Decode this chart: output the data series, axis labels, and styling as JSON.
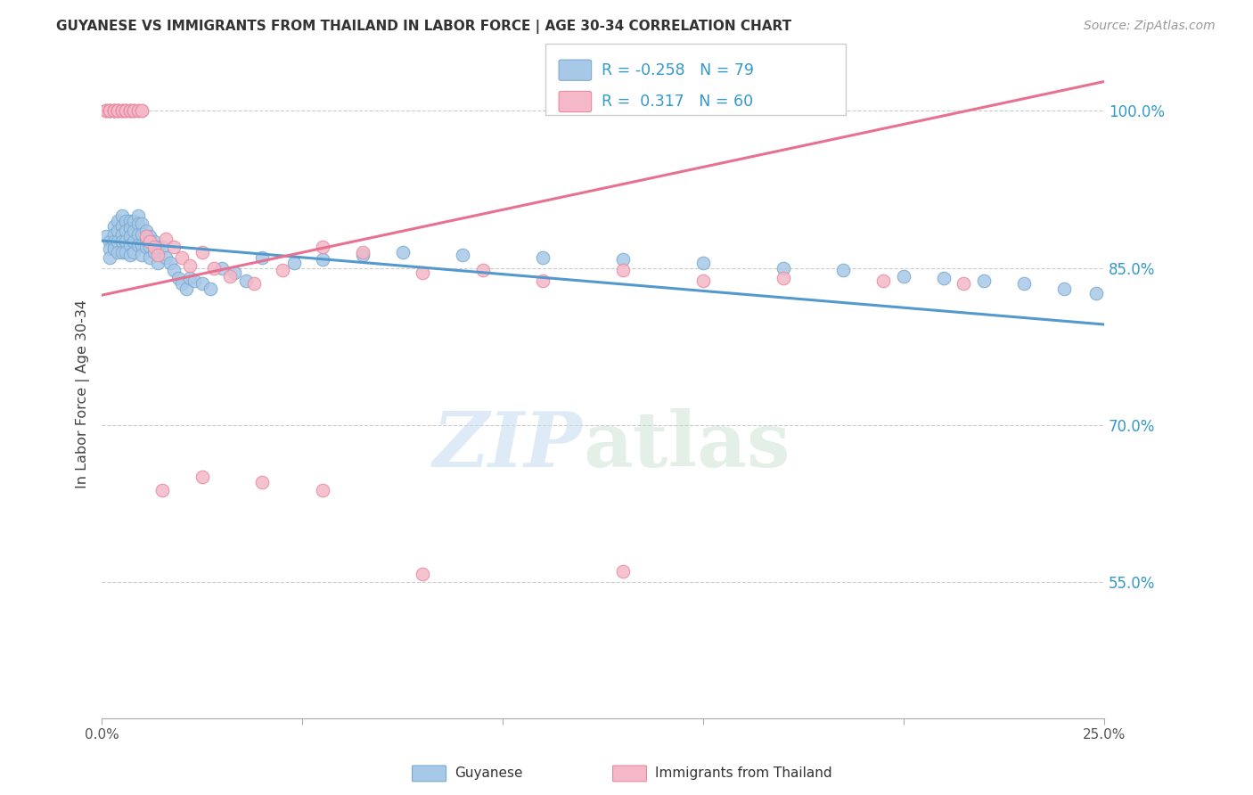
{
  "title": "GUYANESE VS IMMIGRANTS FROM THAILAND IN LABOR FORCE | AGE 30-34 CORRELATION CHART",
  "source": "Source: ZipAtlas.com",
  "ylabel": "In Labor Force | Age 30-34",
  "yticks": [
    0.55,
    0.7,
    0.85,
    1.0
  ],
  "ytick_labels": [
    "55.0%",
    "70.0%",
    "85.0%",
    "100.0%"
  ],
  "xlim": [
    0.0,
    0.25
  ],
  "ylim": [
    0.42,
    1.04
  ],
  "blue_R": "-0.258",
  "blue_N": "79",
  "pink_R": "0.317",
  "pink_N": "60",
  "blue_color": "#a8c8e8",
  "pink_color": "#f4b8c8",
  "blue_edge_color": "#7aabcf",
  "pink_edge_color": "#e88aa0",
  "blue_line_color": "#5599cc",
  "pink_line_color": "#e87090",
  "legend_label_blue": "Guyanese",
  "legend_label_pink": "Immigrants from Thailand",
  "blue_trendline_x": [
    0.0,
    0.25
  ],
  "blue_trendline_y": [
    0.876,
    0.796
  ],
  "pink_trendline_x": [
    0.0,
    0.25
  ],
  "pink_trendline_y": [
    0.824,
    1.028
  ],
  "blue_scatter_x": [
    0.001,
    0.002,
    0.002,
    0.002,
    0.003,
    0.003,
    0.003,
    0.003,
    0.004,
    0.004,
    0.004,
    0.004,
    0.005,
    0.005,
    0.005,
    0.005,
    0.005,
    0.006,
    0.006,
    0.006,
    0.006,
    0.007,
    0.007,
    0.007,
    0.007,
    0.007,
    0.008,
    0.008,
    0.008,
    0.008,
    0.009,
    0.009,
    0.009,
    0.009,
    0.01,
    0.01,
    0.01,
    0.01,
    0.011,
    0.011,
    0.011,
    0.012,
    0.012,
    0.012,
    0.013,
    0.013,
    0.014,
    0.014,
    0.015,
    0.016,
    0.017,
    0.018,
    0.019,
    0.02,
    0.021,
    0.022,
    0.023,
    0.025,
    0.027,
    0.03,
    0.033,
    0.036,
    0.04,
    0.048,
    0.055,
    0.065,
    0.075,
    0.09,
    0.11,
    0.13,
    0.15,
    0.17,
    0.185,
    0.2,
    0.21,
    0.22,
    0.23,
    0.24,
    0.248
  ],
  "blue_scatter_y": [
    0.88,
    0.875,
    0.868,
    0.86,
    0.89,
    0.882,
    0.875,
    0.868,
    0.895,
    0.885,
    0.875,
    0.865,
    0.9,
    0.89,
    0.882,
    0.875,
    0.865,
    0.895,
    0.885,
    0.875,
    0.865,
    0.895,
    0.888,
    0.88,
    0.872,
    0.862,
    0.895,
    0.885,
    0.875,
    0.865,
    0.9,
    0.892,
    0.882,
    0.872,
    0.892,
    0.882,
    0.872,
    0.862,
    0.885,
    0.878,
    0.87,
    0.88,
    0.87,
    0.86,
    0.875,
    0.865,
    0.87,
    0.855,
    0.87,
    0.86,
    0.855,
    0.848,
    0.84,
    0.835,
    0.83,
    0.84,
    0.838,
    0.835,
    0.83,
    0.85,
    0.845,
    0.838,
    0.86,
    0.855,
    0.858,
    0.862,
    0.865,
    0.862,
    0.86,
    0.858,
    0.855,
    0.85,
    0.848,
    0.842,
    0.84,
    0.838,
    0.835,
    0.83,
    0.826
  ],
  "pink_scatter_x": [
    0.001,
    0.001,
    0.001,
    0.002,
    0.002,
    0.002,
    0.002,
    0.003,
    0.003,
    0.003,
    0.003,
    0.004,
    0.004,
    0.004,
    0.004,
    0.005,
    0.005,
    0.005,
    0.006,
    0.006,
    0.006,
    0.007,
    0.007,
    0.007,
    0.008,
    0.008,
    0.008,
    0.009,
    0.009,
    0.01,
    0.01,
    0.011,
    0.012,
    0.013,
    0.014,
    0.016,
    0.018,
    0.02,
    0.022,
    0.025,
    0.028,
    0.032,
    0.038,
    0.045,
    0.055,
    0.065,
    0.08,
    0.095,
    0.11,
    0.13,
    0.15,
    0.17,
    0.195,
    0.215,
    0.015,
    0.025,
    0.04,
    0.055,
    0.08,
    0.13
  ],
  "pink_scatter_y": [
    1.0,
    1.0,
    1.0,
    1.0,
    1.0,
    1.0,
    1.0,
    1.0,
    1.0,
    1.0,
    1.0,
    1.0,
    1.0,
    1.0,
    1.0,
    1.0,
    1.0,
    1.0,
    1.0,
    1.0,
    1.0,
    1.0,
    1.0,
    1.0,
    1.0,
    1.0,
    1.0,
    1.0,
    1.0,
    1.0,
    1.0,
    0.88,
    0.875,
    0.87,
    0.862,
    0.878,
    0.87,
    0.86,
    0.852,
    0.865,
    0.85,
    0.842,
    0.835,
    0.848,
    0.87,
    0.865,
    0.845,
    0.848,
    0.838,
    0.848,
    0.838,
    0.84,
    0.838,
    0.835,
    0.638,
    0.65,
    0.645,
    0.638,
    0.558,
    0.56
  ]
}
